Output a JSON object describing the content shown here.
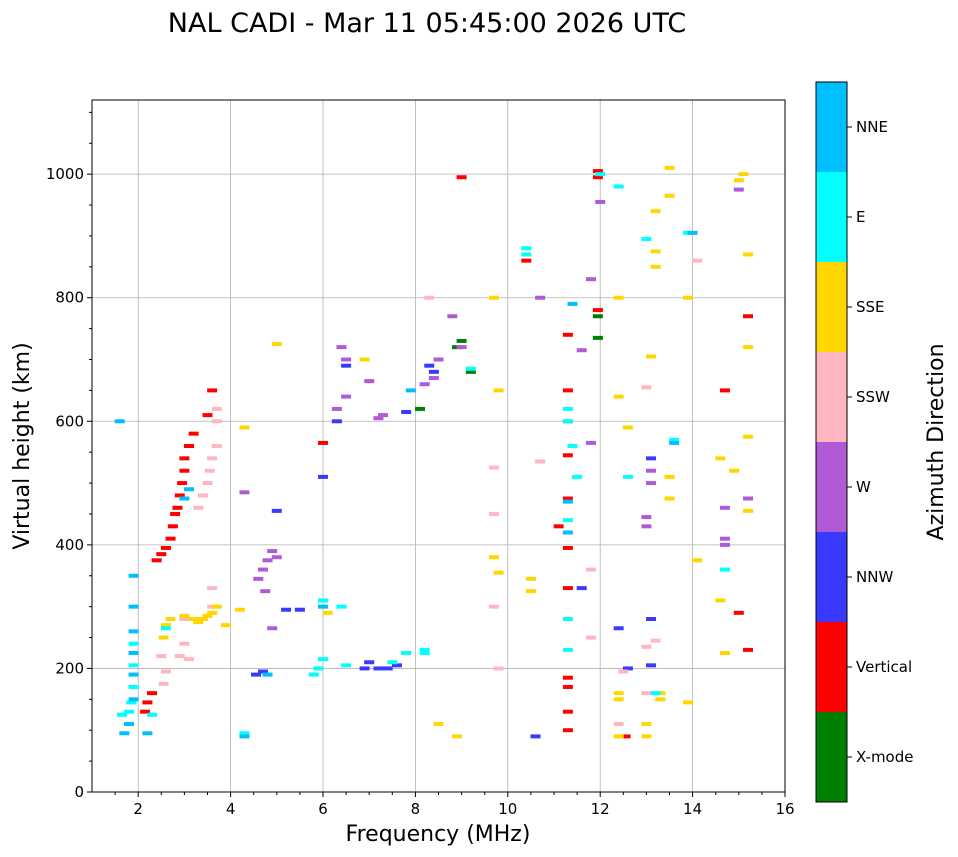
{
  "chart_data": {
    "type": "scatter",
    "title": "NAL CADI - Mar 11 05:45:00 2026 UTC",
    "xlabel": "Frequency (MHz)",
    "ylabel": "Virtual height (km)",
    "xlim": [
      1,
      16
    ],
    "ylim": [
      0,
      1120
    ],
    "xticks": [
      2,
      4,
      6,
      8,
      10,
      12,
      14,
      16
    ],
    "yticks": [
      0,
      200,
      400,
      600,
      800,
      1000
    ],
    "grid": true,
    "colorbar": {
      "label": "Azimuth Direction",
      "categories": [
        {
          "name": "X-mode",
          "color": "#008000"
        },
        {
          "name": "Vertical",
          "color": "#ff0000"
        },
        {
          "name": "NNW",
          "color": "#3a3aff"
        },
        {
          "name": "W",
          "color": "#b05ad8"
        },
        {
          "name": "SSW",
          "color": "#ffb6c1"
        },
        {
          "name": "SSE",
          "color": "#ffd700"
        },
        {
          "name": "E",
          "color": "#00ffff"
        },
        {
          "name": "NNE",
          "color": "#00bfff"
        }
      ]
    },
    "series": [
      {
        "name": "Vertical",
        "points": [
          [
            2.15,
            130
          ],
          [
            2.2,
            145
          ],
          [
            2.3,
            160
          ],
          [
            2.4,
            375
          ],
          [
            2.5,
            385
          ],
          [
            2.6,
            395
          ],
          [
            2.7,
            410
          ],
          [
            2.75,
            430
          ],
          [
            2.8,
            450
          ],
          [
            2.85,
            460
          ],
          [
            2.9,
            480
          ],
          [
            2.95,
            500
          ],
          [
            3.0,
            520
          ],
          [
            3.0,
            540
          ],
          [
            3.1,
            560
          ],
          [
            3.2,
            580
          ],
          [
            3.5,
            610
          ],
          [
            3.6,
            650
          ],
          [
            6.0,
            565
          ],
          [
            11.1,
            430
          ],
          [
            11.3,
            100
          ],
          [
            11.3,
            130
          ],
          [
            11.3,
            170
          ],
          [
            11.3,
            185
          ],
          [
            11.3,
            330
          ],
          [
            11.3,
            395
          ],
          [
            11.3,
            475
          ],
          [
            11.3,
            545
          ],
          [
            11.3,
            650
          ],
          [
            11.3,
            740
          ],
          [
            11.95,
            995
          ],
          [
            11.95,
            1005
          ],
          [
            11.95,
            780
          ],
          [
            12.55,
            90
          ],
          [
            14.7,
            650
          ],
          [
            15.0,
            290
          ],
          [
            15.2,
            230
          ],
          [
            15.2,
            770
          ],
          [
            10.4,
            860
          ],
          [
            9.0,
            995
          ]
        ]
      },
      {
        "name": "X-mode",
        "points": [
          [
            8.9,
            720
          ],
          [
            9.0,
            730
          ],
          [
            9.2,
            680
          ],
          [
            11.95,
            770
          ],
          [
            11.95,
            735
          ],
          [
            8.1,
            620
          ]
        ]
      },
      {
        "name": "NNW",
        "points": [
          [
            4.55,
            190
          ],
          [
            4.7,
            195
          ],
          [
            5.0,
            455
          ],
          [
            5.2,
            295
          ],
          [
            5.5,
            295
          ],
          [
            6.0,
            510
          ],
          [
            6.3,
            600
          ],
          [
            6.5,
            690
          ],
          [
            6.9,
            200
          ],
          [
            7.0,
            210
          ],
          [
            7.2,
            200
          ],
          [
            7.4,
            200
          ],
          [
            7.6,
            205
          ],
          [
            7.8,
            615
          ],
          [
            8.3,
            690
          ],
          [
            8.4,
            680
          ],
          [
            10.6,
            90
          ],
          [
            11.6,
            330
          ],
          [
            12.4,
            265
          ],
          [
            12.6,
            200
          ],
          [
            13.1,
            205
          ],
          [
            13.1,
            280
          ],
          [
            13.1,
            540
          ]
        ]
      },
      {
        "name": "W",
        "points": [
          [
            4.3,
            485
          ],
          [
            4.6,
            345
          ],
          [
            4.7,
            360
          ],
          [
            4.8,
            375
          ],
          [
            4.9,
            390
          ],
          [
            5.0,
            380
          ],
          [
            4.75,
            325
          ],
          [
            4.9,
            265
          ],
          [
            6.3,
            620
          ],
          [
            6.4,
            720
          ],
          [
            6.5,
            700
          ],
          [
            6.5,
            640
          ],
          [
            7.0,
            665
          ],
          [
            7.2,
            605
          ],
          [
            7.3,
            610
          ],
          [
            8.2,
            660
          ],
          [
            8.4,
            670
          ],
          [
            8.5,
            700
          ],
          [
            8.8,
            770
          ],
          [
            9.0,
            720
          ],
          [
            10.7,
            800
          ],
          [
            11.3,
            600
          ],
          [
            11.6,
            715
          ],
          [
            11.8,
            565
          ],
          [
            11.8,
            830
          ],
          [
            12.0,
            955
          ],
          [
            13.0,
            430
          ],
          [
            13.0,
            445
          ],
          [
            13.1,
            500
          ],
          [
            13.1,
            520
          ],
          [
            14.7,
            400
          ],
          [
            14.7,
            460
          ],
          [
            14.7,
            410
          ],
          [
            15.0,
            975
          ],
          [
            15.2,
            475
          ]
        ]
      },
      {
        "name": "SSW",
        "points": [
          [
            2.5,
            220
          ],
          [
            2.55,
            175
          ],
          [
            2.6,
            195
          ],
          [
            2.9,
            220
          ],
          [
            3.0,
            240
          ],
          [
            3.0,
            280
          ],
          [
            3.1,
            215
          ],
          [
            3.3,
            460
          ],
          [
            3.4,
            480
          ],
          [
            3.5,
            500
          ],
          [
            3.55,
            520
          ],
          [
            3.6,
            540
          ],
          [
            3.7,
            560
          ],
          [
            3.7,
            600
          ],
          [
            3.7,
            620
          ],
          [
            3.6,
            330
          ],
          [
            3.6,
            300
          ],
          [
            9.7,
            300
          ],
          [
            9.7,
            450
          ],
          [
            9.7,
            525
          ],
          [
            9.8,
            200
          ],
          [
            10.7,
            535
          ],
          [
            11.8,
            250
          ],
          [
            11.8,
            360
          ],
          [
            12.4,
            110
          ],
          [
            12.5,
            195
          ],
          [
            13.0,
            160
          ],
          [
            13.0,
            235
          ],
          [
            13.0,
            655
          ],
          [
            13.2,
            245
          ],
          [
            14.1,
            860
          ],
          [
            8.3,
            800
          ]
        ]
      },
      {
        "name": "SSE",
        "points": [
          [
            2.55,
            250
          ],
          [
            2.6,
            270
          ],
          [
            2.7,
            280
          ],
          [
            3.0,
            285
          ],
          [
            3.2,
            280
          ],
          [
            3.3,
            275
          ],
          [
            3.4,
            280
          ],
          [
            3.5,
            285
          ],
          [
            3.6,
            290
          ],
          [
            3.7,
            300
          ],
          [
            3.9,
            270
          ],
          [
            4.2,
            295
          ],
          [
            4.3,
            590
          ],
          [
            5.0,
            725
          ],
          [
            6.1,
            290
          ],
          [
            6.9,
            700
          ],
          [
            8.5,
            110
          ],
          [
            8.9,
            90
          ],
          [
            9.7,
            380
          ],
          [
            9.8,
            355
          ],
          [
            10.5,
            345
          ],
          [
            10.5,
            325
          ],
          [
            12.4,
            90
          ],
          [
            12.4,
            160
          ],
          [
            12.4,
            150
          ],
          [
            12.4,
            640
          ],
          [
            12.4,
            800
          ],
          [
            12.6,
            590
          ],
          [
            13.0,
            110
          ],
          [
            13.0,
            90
          ],
          [
            13.1,
            705
          ],
          [
            13.3,
            160
          ],
          [
            13.3,
            150
          ],
          [
            13.5,
            475
          ],
          [
            13.5,
            510
          ],
          [
            13.9,
            145
          ],
          [
            14.1,
            375
          ],
          [
            14.6,
            540
          ],
          [
            14.6,
            310
          ],
          [
            14.7,
            225
          ],
          [
            14.9,
            520
          ],
          [
            15.0,
            990
          ],
          [
            15.1,
            1000
          ],
          [
            15.2,
            870
          ],
          [
            15.2,
            720
          ],
          [
            15.2,
            575
          ],
          [
            15.2,
            455
          ],
          [
            13.5,
            1010
          ],
          [
            13.5,
            965
          ],
          [
            13.2,
            940
          ],
          [
            13.2,
            850
          ],
          [
            13.2,
            875
          ],
          [
            13.9,
            800
          ],
          [
            9.7,
            800
          ],
          [
            9.8,
            650
          ]
        ]
      },
      {
        "name": "E",
        "points": [
          [
            1.65,
            125
          ],
          [
            1.8,
            130
          ],
          [
            1.85,
            145
          ],
          [
            1.9,
            170
          ],
          [
            1.9,
            205
          ],
          [
            1.9,
            240
          ],
          [
            2.3,
            125
          ],
          [
            2.6,
            265
          ],
          [
            4.3,
            95
          ],
          [
            5.8,
            190
          ],
          [
            5.9,
            200
          ],
          [
            6.0,
            215
          ],
          [
            6.0,
            310
          ],
          [
            6.4,
            300
          ],
          [
            6.5,
            205
          ],
          [
            7.5,
            210
          ],
          [
            7.8,
            225
          ],
          [
            8.2,
            225
          ],
          [
            8.2,
            230
          ],
          [
            9.2,
            685
          ],
          [
            10.4,
            880
          ],
          [
            10.4,
            870
          ],
          [
            11.3,
            230
          ],
          [
            11.3,
            280
          ],
          [
            11.3,
            440
          ],
          [
            11.3,
            600
          ],
          [
            11.3,
            620
          ],
          [
            11.4,
            560
          ],
          [
            11.5,
            510
          ],
          [
            12.0,
            1000
          ],
          [
            12.4,
            980
          ],
          [
            13.0,
            895
          ],
          [
            13.2,
            160
          ],
          [
            13.6,
            570
          ],
          [
            13.9,
            905
          ],
          [
            14.7,
            360
          ],
          [
            12.6,
            510
          ]
        ]
      },
      {
        "name": "NNE",
        "points": [
          [
            1.6,
            600
          ],
          [
            1.7,
            95
          ],
          [
            1.8,
            110
          ],
          [
            1.9,
            150
          ],
          [
            1.9,
            190
          ],
          [
            1.9,
            225
          ],
          [
            1.9,
            260
          ],
          [
            1.9,
            300
          ],
          [
            1.9,
            350
          ],
          [
            2.2,
            95
          ],
          [
            3.0,
            475
          ],
          [
            3.1,
            490
          ],
          [
            4.3,
            90
          ],
          [
            4.8,
            190
          ],
          [
            6.0,
            300
          ],
          [
            7.9,
            650
          ],
          [
            11.3,
            420
          ],
          [
            11.3,
            470
          ],
          [
            11.4,
            790
          ],
          [
            13.6,
            565
          ],
          [
            14.0,
            905
          ]
        ]
      }
    ]
  }
}
